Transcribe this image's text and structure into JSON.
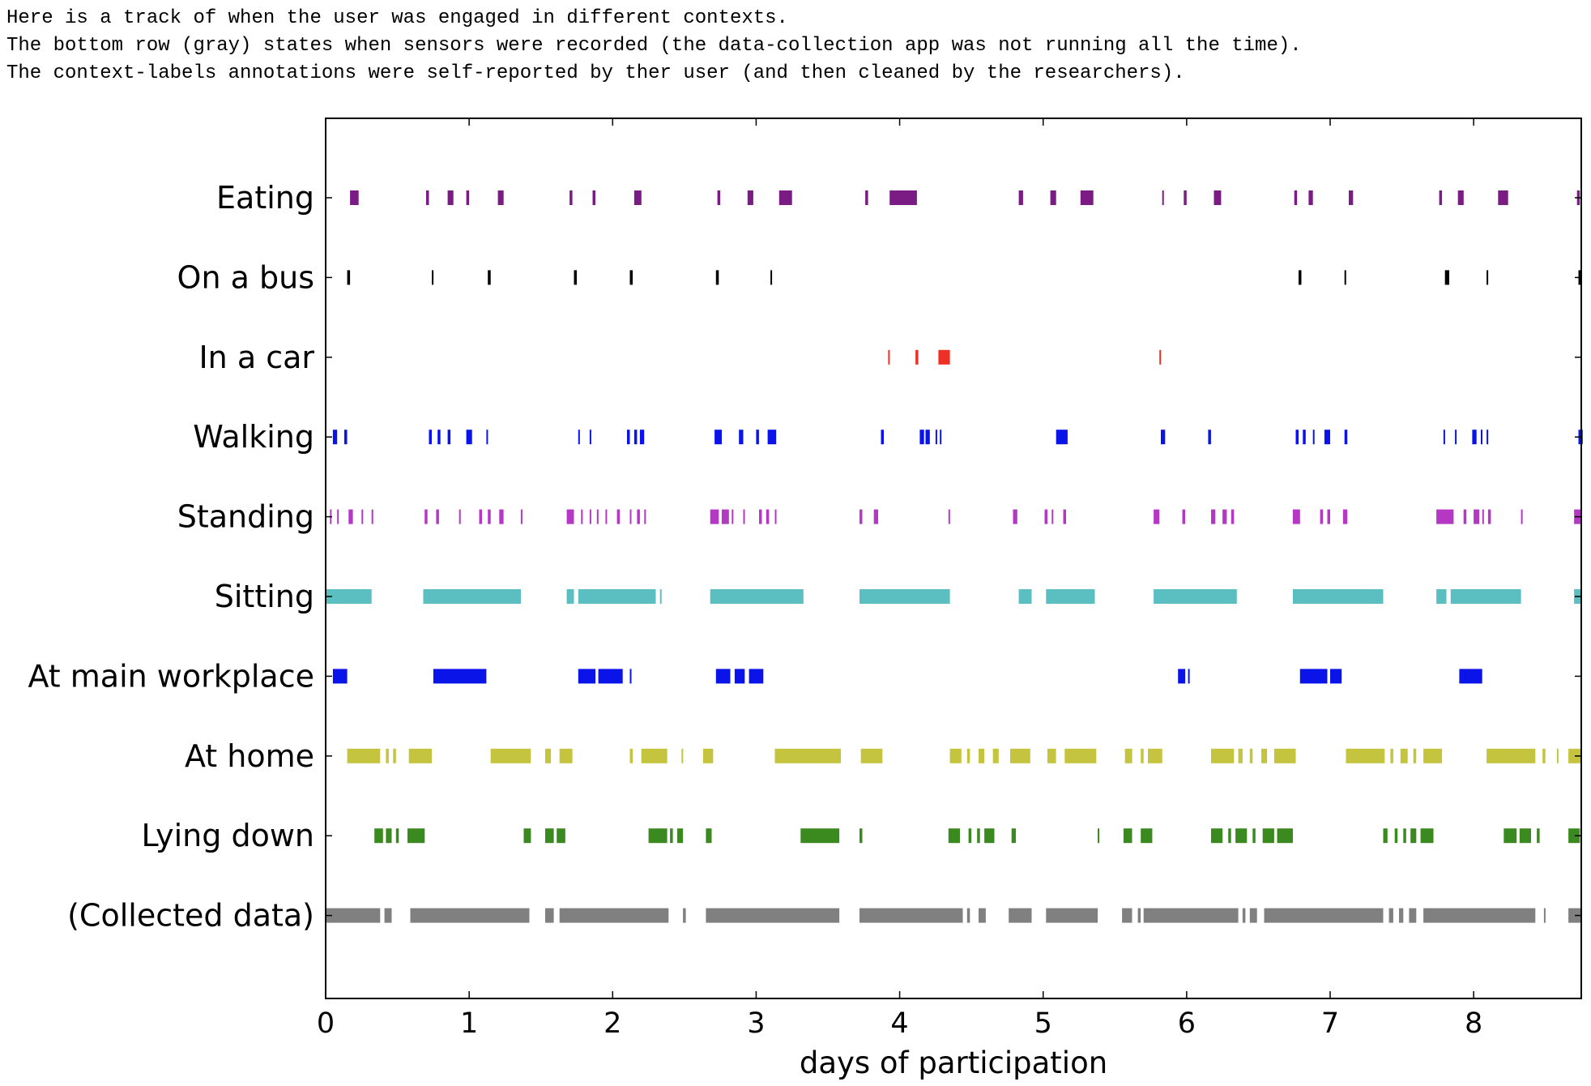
{
  "intro": {
    "line1": "Here is a track of when the user was engaged in different contexts.",
    "line2": "The bottom row (gray) states when sensors were recorded (the data-collection app was not running all the time).",
    "line3": "The context-labels annotations were self-reported by ther user (and then cleaned by the researchers)."
  },
  "chart_data": {
    "type": "timeline",
    "title": "",
    "xlabel": "days of participation",
    "ylabel": "",
    "xlim": [
      0,
      8.75
    ],
    "xticks": [
      0,
      1,
      2,
      3,
      4,
      5,
      6,
      7,
      8
    ],
    "grid": false,
    "legend": "none",
    "rows": [
      {
        "label": "Eating",
        "color": "#7b1c84",
        "intervals": [
          [
            0.17,
            0.23
          ],
          [
            0.7,
            0.72
          ],
          [
            0.85,
            0.89
          ],
          [
            0.98,
            1.0
          ],
          [
            1.2,
            1.24
          ],
          [
            1.7,
            1.72
          ],
          [
            1.86,
            1.88
          ],
          [
            2.15,
            2.2
          ],
          [
            2.73,
            2.75
          ],
          [
            2.94,
            2.98
          ],
          [
            3.16,
            3.25
          ],
          [
            3.76,
            3.78
          ],
          [
            3.93,
            4.12
          ],
          [
            4.83,
            4.86
          ],
          [
            5.05,
            5.09
          ],
          [
            5.26,
            5.35
          ],
          [
            5.83,
            5.84
          ],
          [
            5.98,
            6.0
          ],
          [
            6.19,
            6.24
          ],
          [
            6.75,
            6.77
          ],
          [
            6.85,
            6.88
          ],
          [
            7.13,
            7.16
          ],
          [
            7.76,
            7.78
          ],
          [
            7.89,
            7.93
          ],
          [
            8.17,
            8.24
          ],
          [
            8.72,
            8.74
          ]
        ]
      },
      {
        "label": "On a bus",
        "color": "#000000",
        "intervals": [
          [
            0.15,
            0.17
          ],
          [
            0.74,
            0.75
          ],
          [
            1.13,
            1.15
          ],
          [
            1.73,
            1.75
          ],
          [
            2.12,
            2.14
          ],
          [
            2.72,
            2.74
          ],
          [
            3.1,
            3.11
          ],
          [
            6.78,
            6.8
          ],
          [
            7.1,
            7.11
          ],
          [
            7.8,
            7.83
          ],
          [
            8.09,
            8.1
          ],
          [
            8.73,
            8.75
          ]
        ]
      },
      {
        "label": "In a car",
        "color": "#ee3024",
        "intervals": [
          [
            3.92,
            3.93
          ],
          [
            4.11,
            4.13
          ],
          [
            4.27,
            4.35
          ],
          [
            5.81,
            5.82
          ]
        ]
      },
      {
        "label": "Walking",
        "color": "#0a14e8",
        "intervals": [
          [
            0.05,
            0.08
          ],
          [
            0.13,
            0.15
          ],
          [
            0.72,
            0.74
          ],
          [
            0.78,
            0.8
          ],
          [
            0.85,
            0.87
          ],
          [
            0.98,
            1.02
          ],
          [
            1.12,
            1.13
          ],
          [
            1.76,
            1.77
          ],
          [
            1.84,
            1.85
          ],
          [
            2.1,
            2.12
          ],
          [
            2.15,
            2.17
          ],
          [
            2.19,
            2.22
          ],
          [
            2.71,
            2.76
          ],
          [
            2.88,
            2.91
          ],
          [
            3.0,
            3.02
          ],
          [
            3.08,
            3.14
          ],
          [
            3.87,
            3.89
          ],
          [
            4.14,
            4.17
          ],
          [
            4.18,
            4.21
          ],
          [
            4.25,
            4.26
          ],
          [
            4.28,
            4.29
          ],
          [
            5.09,
            5.17
          ],
          [
            5.82,
            5.85
          ],
          [
            6.15,
            6.17
          ],
          [
            6.76,
            6.78
          ],
          [
            6.81,
            6.83
          ],
          [
            6.88,
            6.89
          ],
          [
            6.96,
            7.0
          ],
          [
            7.1,
            7.12
          ],
          [
            7.79,
            7.8
          ],
          [
            7.87,
            7.88
          ],
          [
            7.99,
            8.02
          ],
          [
            8.05,
            8.06
          ],
          [
            8.09,
            8.1
          ],
          [
            8.73,
            8.76
          ]
        ]
      },
      {
        "label": "Standing",
        "color": "#b438c4",
        "intervals": [
          [
            0.03,
            0.04
          ],
          [
            0.08,
            0.09
          ],
          [
            0.16,
            0.19
          ],
          [
            0.25,
            0.26
          ],
          [
            0.32,
            0.33
          ],
          [
            0.69,
            0.71
          ],
          [
            0.77,
            0.79
          ],
          [
            0.93,
            0.94
          ],
          [
            1.07,
            1.09
          ],
          [
            1.13,
            1.15
          ],
          [
            1.21,
            1.24
          ],
          [
            1.36,
            1.37
          ],
          [
            1.68,
            1.73
          ],
          [
            1.78,
            1.79
          ],
          [
            1.84,
            1.85
          ],
          [
            1.89,
            1.9
          ],
          [
            1.95,
            1.96
          ],
          [
            2.03,
            2.05
          ],
          [
            2.12,
            2.13
          ],
          [
            2.17,
            2.19
          ],
          [
            2.22,
            2.23
          ],
          [
            2.68,
            2.74
          ],
          [
            2.76,
            2.81
          ],
          [
            2.83,
            2.84
          ],
          [
            2.91,
            2.92
          ],
          [
            3.02,
            3.04
          ],
          [
            3.07,
            3.09
          ],
          [
            3.13,
            3.14
          ],
          [
            3.72,
            3.74
          ],
          [
            3.82,
            3.85
          ],
          [
            4.34,
            4.35
          ],
          [
            4.79,
            4.82
          ],
          [
            5.01,
            5.03
          ],
          [
            5.06,
            5.07
          ],
          [
            5.14,
            5.16
          ],
          [
            5.77,
            5.81
          ],
          [
            5.97,
            5.99
          ],
          [
            6.17,
            6.2
          ],
          [
            6.25,
            6.28
          ],
          [
            6.31,
            6.33
          ],
          [
            6.74,
            6.79
          ],
          [
            6.93,
            6.95
          ],
          [
            6.98,
            7.0
          ],
          [
            7.09,
            7.12
          ],
          [
            7.74,
            7.86
          ],
          [
            7.93,
            7.95
          ],
          [
            8.0,
            8.04
          ],
          [
            8.06,
            8.07
          ],
          [
            8.1,
            8.12
          ],
          [
            8.33,
            8.34
          ],
          [
            8.7,
            8.75
          ]
        ]
      },
      {
        "label": "Sitting",
        "color": "#5bbfc1",
        "intervals": [
          [
            0.0,
            0.32
          ],
          [
            0.68,
            1.36
          ],
          [
            1.68,
            1.73
          ],
          [
            1.76,
            2.3
          ],
          [
            2.33,
            2.34
          ],
          [
            2.68,
            3.33
          ],
          [
            3.72,
            4.35
          ],
          [
            4.83,
            4.92
          ],
          [
            5.02,
            5.36
          ],
          [
            5.77,
            6.35
          ],
          [
            6.74,
            7.37
          ],
          [
            7.74,
            7.81
          ],
          [
            7.84,
            8.33
          ],
          [
            8.7,
            8.75
          ]
        ]
      },
      {
        "label": "At main workplace",
        "color": "#0a14e8",
        "intervals": [
          [
            0.05,
            0.15
          ],
          [
            0.75,
            1.12
          ],
          [
            1.76,
            1.88
          ],
          [
            1.9,
            2.07
          ],
          [
            2.12,
            2.13
          ],
          [
            2.72,
            2.82
          ],
          [
            2.85,
            2.92
          ],
          [
            2.95,
            3.05
          ],
          [
            5.94,
            5.99
          ],
          [
            6.01,
            6.02
          ],
          [
            6.79,
            6.98
          ],
          [
            7.0,
            7.08
          ],
          [
            7.9,
            8.06
          ]
        ]
      },
      {
        "label": "At home",
        "color": "#c4c43e",
        "intervals": [
          [
            0.15,
            0.38
          ],
          [
            0.42,
            0.44
          ],
          [
            0.47,
            0.49
          ],
          [
            0.58,
            0.74
          ],
          [
            1.15,
            1.43
          ],
          [
            1.53,
            1.57
          ],
          [
            1.63,
            1.72
          ],
          [
            2.12,
            2.14
          ],
          [
            2.2,
            2.38
          ],
          [
            2.48,
            2.49
          ],
          [
            2.63,
            2.7
          ],
          [
            3.13,
            3.59
          ],
          [
            3.73,
            3.88
          ],
          [
            4.35,
            4.43
          ],
          [
            4.47,
            4.49
          ],
          [
            4.55,
            4.59
          ],
          [
            4.65,
            4.69
          ],
          [
            4.77,
            4.91
          ],
          [
            5.03,
            5.09
          ],
          [
            5.15,
            5.37
          ],
          [
            5.57,
            5.62
          ],
          [
            5.68,
            5.7
          ],
          [
            5.73,
            5.83
          ],
          [
            6.17,
            6.33
          ],
          [
            6.36,
            6.39
          ],
          [
            6.44,
            6.46
          ],
          [
            6.52,
            6.56
          ],
          [
            6.61,
            6.76
          ],
          [
            7.11,
            7.38
          ],
          [
            7.42,
            7.44
          ],
          [
            7.49,
            7.54
          ],
          [
            7.58,
            7.6
          ],
          [
            7.65,
            7.78
          ],
          [
            8.09,
            8.43
          ],
          [
            8.48,
            8.5
          ],
          [
            8.58,
            8.59
          ],
          [
            8.66,
            8.75
          ]
        ]
      },
      {
        "label": "Lying down",
        "color": "#3b8a1f",
        "intervals": [
          [
            0.34,
            0.4
          ],
          [
            0.42,
            0.46
          ],
          [
            0.49,
            0.51
          ],
          [
            0.57,
            0.69
          ],
          [
            1.38,
            1.43
          ],
          [
            1.53,
            1.59
          ],
          [
            1.61,
            1.67
          ],
          [
            2.25,
            2.38
          ],
          [
            2.4,
            2.42
          ],
          [
            2.45,
            2.49
          ],
          [
            2.65,
            2.69
          ],
          [
            3.31,
            3.58
          ],
          [
            3.72,
            3.74
          ],
          [
            4.34,
            4.42
          ],
          [
            4.48,
            4.5
          ],
          [
            4.54,
            4.56
          ],
          [
            4.59,
            4.66
          ],
          [
            4.78,
            4.81
          ],
          [
            5.38,
            5.39
          ],
          [
            5.56,
            5.62
          ],
          [
            5.68,
            5.76
          ],
          [
            6.17,
            6.25
          ],
          [
            6.29,
            6.31
          ],
          [
            6.34,
            6.42
          ],
          [
            6.46,
            6.48
          ],
          [
            6.53,
            6.61
          ],
          [
            6.63,
            6.74
          ],
          [
            7.37,
            7.4
          ],
          [
            7.45,
            7.47
          ],
          [
            7.51,
            7.53
          ],
          [
            7.56,
            7.6
          ],
          [
            7.63,
            7.72
          ],
          [
            8.21,
            8.3
          ],
          [
            8.32,
            8.4
          ],
          [
            8.44,
            8.46
          ],
          [
            8.66,
            8.74
          ]
        ]
      },
      {
        "label": "(Collected data)",
        "color": "#808080",
        "intervals": [
          [
            0.0,
            0.38
          ],
          [
            0.41,
            0.46
          ],
          [
            0.59,
            1.42
          ],
          [
            1.53,
            1.59
          ],
          [
            1.63,
            2.39
          ],
          [
            2.49,
            2.51
          ],
          [
            2.65,
            3.58
          ],
          [
            3.72,
            4.44
          ],
          [
            4.47,
            4.49
          ],
          [
            4.55,
            4.6
          ],
          [
            4.76,
            4.92
          ],
          [
            5.02,
            5.38
          ],
          [
            5.55,
            5.62
          ],
          [
            5.66,
            5.68
          ],
          [
            5.7,
            6.36
          ],
          [
            6.39,
            6.41
          ],
          [
            6.44,
            6.49
          ],
          [
            6.54,
            7.37
          ],
          [
            7.41,
            7.44
          ],
          [
            7.48,
            7.51
          ],
          [
            7.55,
            7.6
          ],
          [
            7.65,
            8.43
          ],
          [
            8.49,
            8.5
          ],
          [
            8.66,
            8.75
          ]
        ]
      }
    ]
  }
}
